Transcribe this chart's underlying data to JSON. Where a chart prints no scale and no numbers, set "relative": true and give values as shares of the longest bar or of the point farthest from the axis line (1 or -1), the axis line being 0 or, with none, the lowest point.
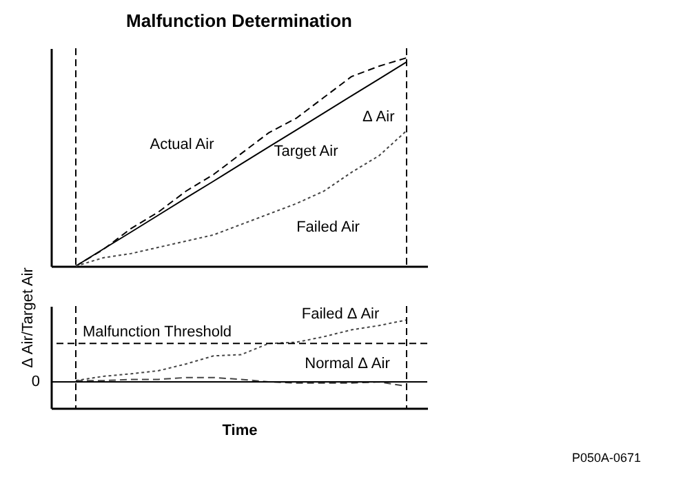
{
  "chart_data": [
    {
      "type": "line",
      "title": "Malfunction Determination",
      "ylabel": "Δ Air/Target Air",
      "relative": true,
      "categories": [
        null,
        null,
        null,
        null,
        null,
        null,
        null,
        null,
        null,
        null,
        null,
        null,
        null
      ],
      "series": [
        {
          "name": "Actual Air",
          "color": "#000000",
          "line_style": "dashed",
          "values": [
            0,
            0.08,
            0.18,
            0.26,
            0.36,
            0.44,
            0.54,
            0.64,
            0.71,
            0.81,
            0.91,
            0.96,
            1
          ]
        },
        {
          "name": "Target Air",
          "color": "#000000",
          "line_style": "solid",
          "values": [
            0,
            0.082,
            0.163,
            0.245,
            0.327,
            0.408,
            0.49,
            0.572,
            0.653,
            0.735,
            0.817,
            0.898,
            0.98
          ]
        },
        {
          "name": "Failed Air",
          "color": "#444444",
          "line_style": "dotted",
          "values": [
            0,
            0.04,
            0.06,
            0.09,
            0.12,
            0.15,
            0.2,
            0.25,
            0.3,
            0.36,
            0.45,
            0.53,
            0.65
          ]
        }
      ],
      "annotations": [
        "Δ Air"
      ]
    },
    {
      "type": "line",
      "xlabel": "Time",
      "relative": true,
      "categories": [
        null,
        null,
        null,
        null,
        null,
        null,
        null,
        null,
        null,
        null,
        null,
        null,
        null
      ],
      "series": [
        {
          "name": "Failed Δ Air",
          "color": "#444444",
          "line_style": "dotted",
          "values": [
            0.02,
            0.09,
            0.13,
            0.18,
            0.29,
            0.42,
            0.44,
            0.62,
            0.64,
            0.73,
            0.84,
            0.91,
            1
          ]
        },
        {
          "name": "Normal Δ Air",
          "color": "#444444",
          "line_style": "dashed",
          "values": [
            0.02,
            0.02,
            0.04,
            0.04,
            0.07,
            0.07,
            0.04,
            0,
            -0.02,
            -0.02,
            -0.02,
            0,
            -0.07
          ]
        }
      ],
      "ref_lines": [
        {
          "axis": "y",
          "value": 0,
          "label": "0",
          "line_style": "solid",
          "color": "#000000"
        },
        {
          "axis": "y",
          "value": 0.62,
          "label": "Malfunction Threshold",
          "line_style": "dashed",
          "color": "#000000"
        }
      ],
      "annotations": [
        "P050A-0671"
      ]
    }
  ]
}
